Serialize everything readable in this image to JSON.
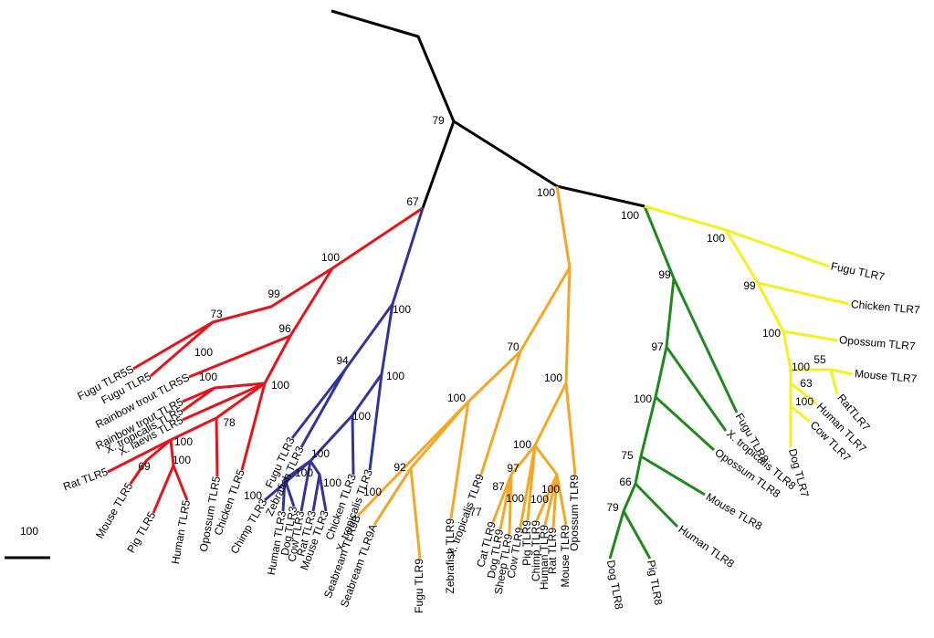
{
  "scale_label": "100",
  "leaves": [
    "Fugu TLR5S",
    "Fugu TLR5",
    "Rainbow trout TLR5S",
    "Rainbow trout TLR5",
    "X. tropicalis TLR5",
    "X. laevis TLR5",
    "Rat TLR5",
    "Mouse TLR5",
    "Pig TLR5",
    "Human TLR5",
    "Opossum TLR5",
    "Chicken TLR5",
    "Zebrafish TLR3",
    "Fugu TLR3",
    "Chimp TLR3",
    "Human TLR3",
    "Dog TLR3",
    "Cow TLR3",
    "Rat TLR3",
    "Mouse TLR3",
    "Chicken TLR3",
    "X. tropicalis TLR3",
    "Seabream TLR9B",
    "Seabream TLR9A",
    "Fugu TLR9",
    "Zebrafish TLR9",
    "X. tropicalis TLR9",
    "Cat TLR9",
    "Dog TLR9",
    "Sheep TLR9",
    "Cow TLR9",
    "Pig TLR9",
    "Chimp TLR9",
    "Human TLR9",
    "Rat TLR9",
    "Mouse TLR9",
    "Opossum TLR9",
    "Dog TLR8",
    "Pig TLR8",
    "Human TLR8",
    "Mouse TLR8",
    "Opossum TLR8",
    "X. tropicalis TLR8",
    "Fugu TLR8",
    "Fugu TLR7",
    "Chicken TLR7",
    "Opossum TLR7",
    "Mouse TLR7",
    "RatTLR7",
    "Human TLR7",
    "Cow TLR7",
    "Dog TLR7"
  ],
  "support": [
    79,
    67,
    100,
    100,
    100,
    100,
    99,
    73,
    99,
    99,
    96,
    100,
    100,
    100,
    94,
    100,
    70,
    100,
    97,
    100,
    100,
    100,
    100,
    100,
    55,
    63,
    100,
    78,
    100,
    100,
    100,
    69,
    100,
    100,
    92,
    97,
    87,
    77,
    100,
    100,
    100,
    75,
    100,
    100,
    100,
    100,
    66,
    79
  ]
}
